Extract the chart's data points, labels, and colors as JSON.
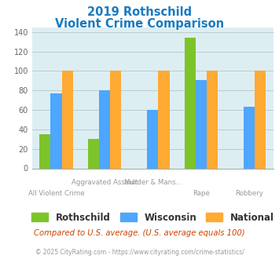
{
  "title_line1": "2019 Rothschild",
  "title_line2": "Violent Crime Comparison",
  "title_color": "#1a7abf",
  "series": {
    "Rothschild": {
      "values": [
        35,
        30,
        null,
        134,
        null
      ],
      "color": "#7dc42a"
    },
    "Wisconsin": {
      "values": [
        77,
        80,
        60,
        91,
        63
      ],
      "color": "#4da6ff"
    },
    "National": {
      "values": [
        100,
        100,
        100,
        100,
        100
      ],
      "color": "#ffaa33"
    }
  },
  "ylim": [
    0,
    145
  ],
  "yticks": [
    0,
    20,
    40,
    60,
    80,
    100,
    120,
    140
  ],
  "grid_color": "#bbcccc",
  "plot_bg_color": "#ddeef3",
  "fig_bg_color": "#ffffff",
  "top_labels": {
    "1": "Aggravated Assault",
    "2": "Murder & Mans..."
  },
  "bottom_labels": {
    "0": "All Violent Crime",
    "3": "Rape",
    "4": "Robbery"
  },
  "footnote1": "Compared to U.S. average. (U.S. average equals 100)",
  "footnote2": "© 2025 CityRating.com - https://www.cityrating.com/crime-statistics/",
  "footnote1_color": "#cc4400",
  "footnote2_color": "#999999",
  "legend_labels": [
    "Rothschild",
    "Wisconsin",
    "National"
  ],
  "legend_colors": [
    "#7dc42a",
    "#4da6ff",
    "#ffaa33"
  ]
}
